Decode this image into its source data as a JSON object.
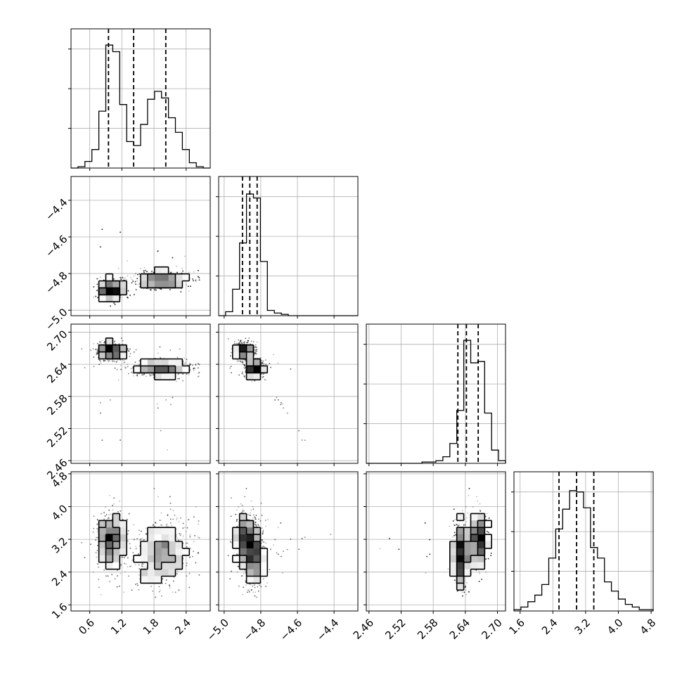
{
  "chart_data": {
    "type": "corner",
    "parameters": [
      {
        "range": [
          0.25,
          2.85
        ],
        "ticks": [
          0.6,
          1.2,
          1.8,
          2.4
        ],
        "tick_labels": [
          "0.6",
          "1.2",
          "1.8",
          "2.4"
        ],
        "quantiles": [
          0.95,
          1.42,
          2.02
        ],
        "hist": [
          0,
          0.01,
          0.05,
          0.14,
          0.43,
          0.93,
          0.88,
          0.48,
          0.2,
          0.17,
          0.33,
          0.52,
          0.58,
          0.53,
          0.38,
          0.27,
          0.14,
          0.04,
          0.01,
          0
        ]
      },
      {
        "range": [
          -5.03,
          -4.27
        ],
        "ticks": [
          -5.0,
          -4.8,
          -4.6,
          -4.4
        ],
        "tick_labels": [
          "−5.0",
          "−4.8",
          "−4.6",
          "−4.4"
        ],
        "quantiles": [
          -4.9,
          -4.86,
          -4.82
        ],
        "hist": [
          0,
          0.03,
          0.2,
          0.55,
          0.92,
          0.89,
          0.41,
          0.04,
          0.02,
          0.01,
          0,
          0,
          0,
          0,
          0,
          0,
          0,
          0,
          0,
          0
        ]
      },
      {
        "range": [
          2.455,
          2.715
        ],
        "ticks": [
          2.46,
          2.52,
          2.58,
          2.64,
          2.7
        ],
        "tick_labels": [
          "2.46",
          "2.52",
          "2.58",
          "2.64",
          "2.70"
        ],
        "quantiles": [
          2.626,
          2.642,
          2.664
        ],
        "hist": [
          0,
          0,
          0,
          0,
          0,
          0,
          0,
          0,
          0.01,
          0.01,
          0.02,
          0.05,
          0.15,
          0.4,
          0.93,
          0.76,
          0.77,
          0.38,
          0.1,
          0.02
        ]
      },
      {
        "range": [
          1.45,
          4.85
        ],
        "ticks": [
          1.6,
          2.4,
          3.2,
          4.0,
          4.8
        ],
        "tick_labels": [
          "1.6",
          "2.4",
          "3.2",
          "4.0",
          "4.8"
        ],
        "quantiles": [
          2.55,
          2.98,
          3.4
        ],
        "hist": [
          0.01,
          0.03,
          0.07,
          0.12,
          0.2,
          0.4,
          0.62,
          0.77,
          0.91,
          0.9,
          0.78,
          0.48,
          0.4,
          0.22,
          0.15,
          0.09,
          0.05,
          0.03,
          0.01,
          0.01
        ]
      }
    ],
    "grid": true
  }
}
